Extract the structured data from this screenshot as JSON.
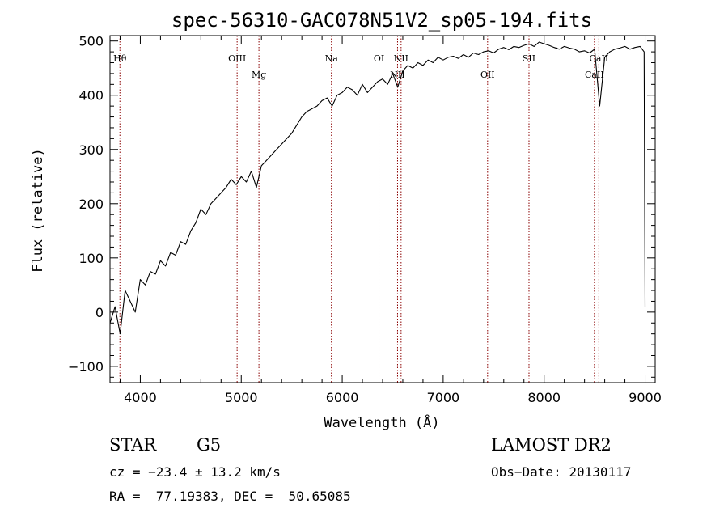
{
  "chart_data": {
    "type": "line",
    "title": "spec-56310-GAC078N51V2_sp05-194.fits",
    "xlabel": "Wavelength (Å)",
    "ylabel": "Flux (relative)",
    "xlim": [
      3700,
      9100
    ],
    "ylim": [
      -130,
      510
    ],
    "x_ticks": [
      4000,
      5000,
      6000,
      7000,
      8000,
      9000
    ],
    "y_ticks": [
      -100,
      0,
      100,
      200,
      300,
      400,
      500
    ],
    "line_color": "#8b0000",
    "series": [
      {
        "name": "flux",
        "x": [
          3700,
          3750,
          3800,
          3850,
          3900,
          3950,
          4000,
          4050,
          4100,
          4150,
          4200,
          4250,
          4300,
          4350,
          4400,
          4450,
          4500,
          4550,
          4600,
          4650,
          4700,
          4750,
          4800,
          4850,
          4900,
          4950,
          5000,
          5050,
          5100,
          5150,
          5200,
          5250,
          5300,
          5350,
          5400,
          5450,
          5500,
          5550,
          5600,
          5650,
          5700,
          5750,
          5800,
          5850,
          5900,
          5950,
          6000,
          6050,
          6100,
          6150,
          6200,
          6250,
          6300,
          6350,
          6400,
          6450,
          6500,
          6550,
          6600,
          6650,
          6700,
          6750,
          6800,
          6850,
          6900,
          6950,
          7000,
          7050,
          7100,
          7150,
          7200,
          7250,
          7300,
          7350,
          7400,
          7450,
          7500,
          7550,
          7600,
          7650,
          7700,
          7750,
          7800,
          7850,
          7900,
          7950,
          8000,
          8050,
          8100,
          8150,
          8200,
          8250,
          8300,
          8350,
          8400,
          8450,
          8500,
          8550,
          8600,
          8650,
          8700,
          8750,
          8800,
          8850,
          8900,
          8950,
          8990,
          9000
        ],
        "values": [
          -20,
          10,
          -40,
          40,
          20,
          0,
          60,
          50,
          75,
          70,
          95,
          85,
          110,
          105,
          130,
          125,
          150,
          165,
          190,
          180,
          200,
          210,
          220,
          230,
          245,
          235,
          250,
          240,
          260,
          230,
          270,
          280,
          290,
          300,
          310,
          320,
          330,
          345,
          360,
          370,
          375,
          380,
          390,
          395,
          380,
          400,
          405,
          415,
          410,
          400,
          420,
          405,
          415,
          425,
          430,
          420,
          440,
          415,
          445,
          455,
          450,
          460,
          455,
          465,
          460,
          470,
          465,
          470,
          472,
          468,
          475,
          470,
          478,
          475,
          480,
          482,
          478,
          485,
          488,
          484,
          490,
          488,
          492,
          495,
          490,
          498,
          495,
          492,
          488,
          485,
          490,
          487,
          485,
          480,
          482,
          478,
          485,
          380,
          470,
          480,
          485,
          487,
          490,
          485,
          488,
          490,
          480,
          10
        ]
      }
    ],
    "spectral_lines": [
      {
        "label": "Hθ",
        "x": 3798,
        "level": "top"
      },
      {
        "label": "OIII",
        "x": 4959,
        "level": "top"
      },
      {
        "label": "Mg",
        "x": 5175,
        "level": "low"
      },
      {
        "label": "Na",
        "x": 5893,
        "level": "top"
      },
      {
        "label": "OI",
        "x": 6364,
        "level": "top"
      },
      {
        "label": "NII",
        "x": 6548,
        "level": "low"
      },
      {
        "label": "NII",
        "x": 6583,
        "level": "top"
      },
      {
        "label": "OII",
        "x": 7440,
        "level": "low"
      },
      {
        "label": "SII",
        "x": 7850,
        "level": "top"
      },
      {
        "label": "CaII",
        "x": 8498,
        "level": "low"
      },
      {
        "label": "CaII",
        "x": 8542,
        "level": "top"
      }
    ]
  },
  "info": {
    "object_class": "STAR",
    "subclass": "G5",
    "survey": "LAMOST DR2",
    "cz": "cz = −23.4 ± 13.2 km/s",
    "obs_date": "Obs−Date: 20130117",
    "coords": "RA =  77.19383, DEC =  50.65085"
  }
}
